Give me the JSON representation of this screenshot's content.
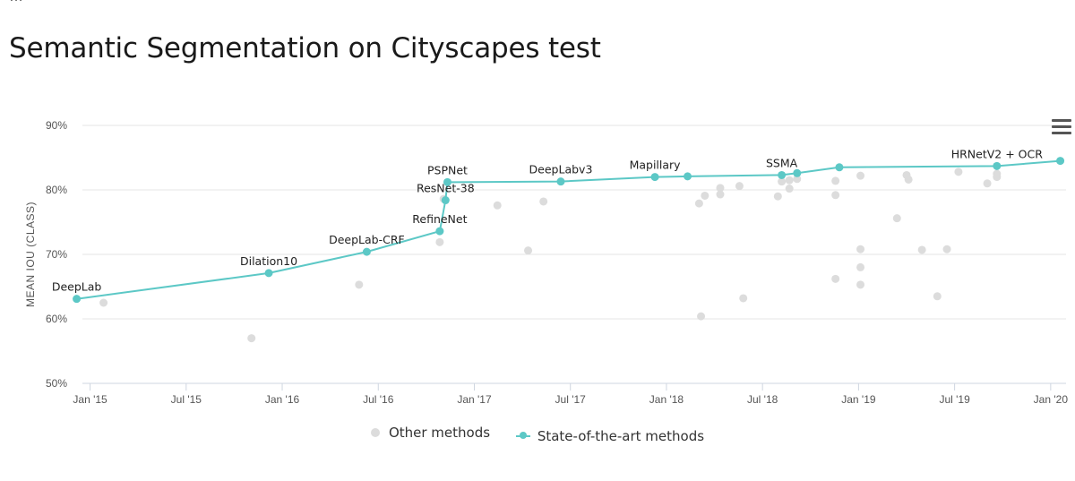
{
  "page": {
    "title": "Semantic Segmentation on Cityscapes test",
    "cut_text": "…"
  },
  "chart_data": {
    "type": "scatter",
    "title": "Semantic Segmentation on Cityscapes test",
    "xlabel": "",
    "ylabel": "MEAN IOU (CLASS)",
    "ylim": [
      50,
      90
    ],
    "yticks": [
      50,
      60,
      70,
      80,
      90
    ],
    "ytick_labels": [
      "50%",
      "60%",
      "70%",
      "80%",
      "90%"
    ],
    "xlim": [
      2014.96,
      2020.08
    ],
    "xticks": [
      2015.0,
      2015.5,
      2016.0,
      2016.5,
      2017.0,
      2017.5,
      2018.0,
      2018.5,
      2019.0,
      2019.5,
      2020.0
    ],
    "xtick_labels": [
      "Jan '15",
      "Jul '15",
      "Jan '16",
      "Jul '16",
      "Jan '17",
      "Jul '17",
      "Jan '18",
      "Jul '18",
      "Jan '19",
      "Jul '19",
      "Jan '20"
    ],
    "colors": {
      "sota": "#5cc8c6",
      "other": "#dcdcdc",
      "grid": "#e6e6e6",
      "axis_text": "#555555"
    },
    "sota_series": {
      "name": "State-of-the-art methods",
      "points": [
        {
          "x": 2014.93,
          "y": 63.1,
          "label": "DeepLab"
        },
        {
          "x": 2015.93,
          "y": 67.1,
          "label": "Dilation10"
        },
        {
          "x": 2016.44,
          "y": 70.4,
          "label": "DeepLab-CRF"
        },
        {
          "x": 2016.82,
          "y": 73.6,
          "label": "RefineNet"
        },
        {
          "x": 2016.85,
          "y": 78.4,
          "label": "ResNet-38"
        },
        {
          "x": 2016.86,
          "y": 81.2,
          "label": "PSPNet"
        },
        {
          "x": 2017.45,
          "y": 81.3,
          "label": "DeepLabv3"
        },
        {
          "x": 2017.94,
          "y": 82.0,
          "label": "Mapillary"
        },
        {
          "x": 2018.11,
          "y": 82.1,
          "label": ""
        },
        {
          "x": 2018.6,
          "y": 82.3,
          "label": "SSMA"
        },
        {
          "x": 2018.68,
          "y": 82.6,
          "label": ""
        },
        {
          "x": 2018.9,
          "y": 83.5,
          "label": ""
        },
        {
          "x": 2019.72,
          "y": 83.7,
          "label": "HRNetV2 + OCR"
        },
        {
          "x": 2020.05,
          "y": 84.5,
          "label": ""
        }
      ]
    },
    "other_series": {
      "name": "Other methods",
      "points": [
        {
          "x": 2015.07,
          "y": 62.5
        },
        {
          "x": 2015.84,
          "y": 57.0
        },
        {
          "x": 2016.4,
          "y": 65.3
        },
        {
          "x": 2016.82,
          "y": 71.9
        },
        {
          "x": 2016.84,
          "y": 78.6
        },
        {
          "x": 2017.12,
          "y": 77.6
        },
        {
          "x": 2017.28,
          "y": 70.6
        },
        {
          "x": 2017.36,
          "y": 78.2
        },
        {
          "x": 2018.17,
          "y": 77.9
        },
        {
          "x": 2018.18,
          "y": 60.4
        },
        {
          "x": 2018.2,
          "y": 79.1
        },
        {
          "x": 2018.28,
          "y": 79.3
        },
        {
          "x": 2018.28,
          "y": 80.3
        },
        {
          "x": 2018.38,
          "y": 80.6
        },
        {
          "x": 2018.4,
          "y": 63.2
        },
        {
          "x": 2018.58,
          "y": 79.0
        },
        {
          "x": 2018.6,
          "y": 81.3
        },
        {
          "x": 2018.64,
          "y": 80.2
        },
        {
          "x": 2018.64,
          "y": 81.5
        },
        {
          "x": 2018.68,
          "y": 81.7
        },
        {
          "x": 2018.88,
          "y": 81.4
        },
        {
          "x": 2018.88,
          "y": 79.2
        },
        {
          "x": 2018.88,
          "y": 66.2
        },
        {
          "x": 2019.01,
          "y": 82.2
        },
        {
          "x": 2019.01,
          "y": 70.8
        },
        {
          "x": 2019.01,
          "y": 68.0
        },
        {
          "x": 2019.01,
          "y": 65.3
        },
        {
          "x": 2019.2,
          "y": 75.6
        },
        {
          "x": 2019.25,
          "y": 82.3
        },
        {
          "x": 2019.26,
          "y": 81.6
        },
        {
          "x": 2019.33,
          "y": 70.7
        },
        {
          "x": 2019.41,
          "y": 63.5
        },
        {
          "x": 2019.46,
          "y": 70.8
        },
        {
          "x": 2019.52,
          "y": 82.8
        },
        {
          "x": 2019.67,
          "y": 81.0
        },
        {
          "x": 2019.72,
          "y": 82.0
        },
        {
          "x": 2019.72,
          "y": 82.5
        }
      ]
    },
    "legend": {
      "position": "bottom-center",
      "items": [
        "Other methods",
        "State-of-the-art methods"
      ]
    }
  }
}
